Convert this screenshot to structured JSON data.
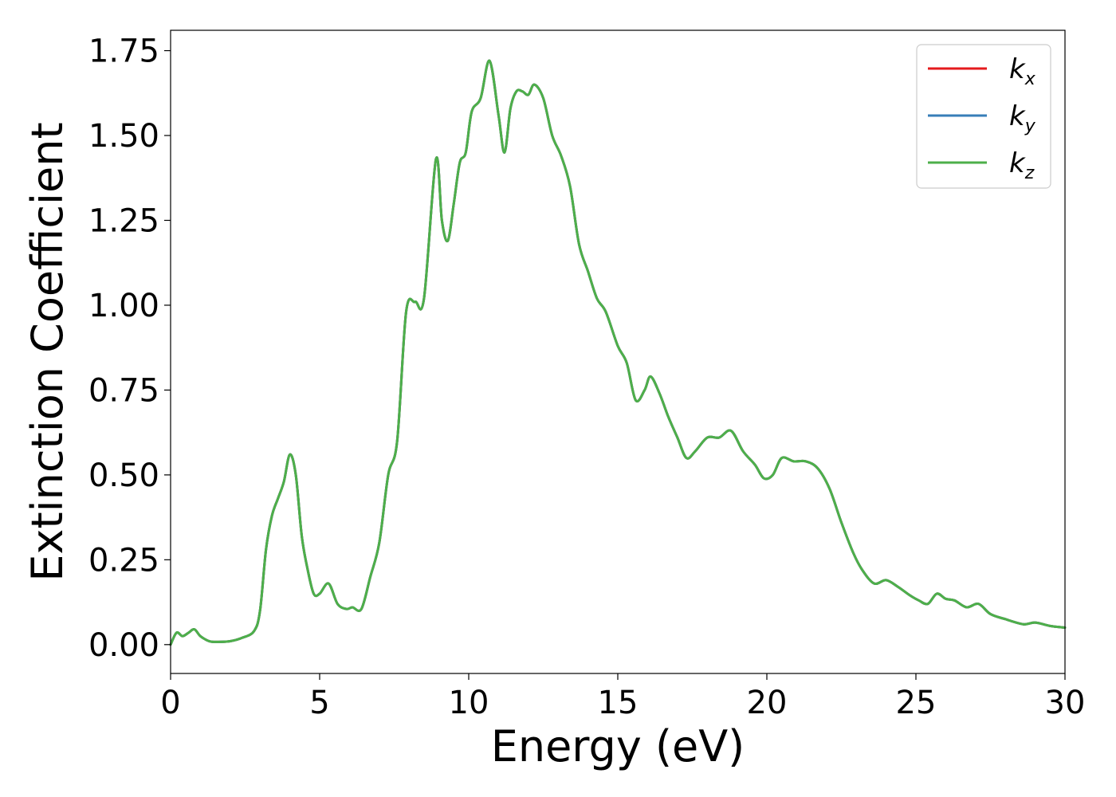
{
  "chart_data": {
    "type": "line",
    "xlabel": "Energy (eV)",
    "ylabel": "Extinction Coefficient",
    "xlim": [
      0,
      30
    ],
    "ylim": [
      -0.085,
      1.81
    ],
    "x_ticks": [
      0,
      5,
      10,
      15,
      20,
      25,
      30
    ],
    "x_tick_labels": [
      "0",
      "5",
      "10",
      "15",
      "20",
      "25",
      "30"
    ],
    "y_ticks": [
      0.0,
      0.25,
      0.5,
      0.75,
      1.0,
      1.25,
      1.5,
      1.75
    ],
    "y_tick_labels": [
      "0.00",
      "0.25",
      "0.50",
      "0.75",
      "1.00",
      "1.25",
      "1.50",
      "1.75"
    ],
    "grid": false,
    "legend_position": "top-right",
    "x": [
      0.0,
      0.2,
      0.4,
      0.6,
      0.8,
      1.0,
      1.3,
      1.6,
      2.0,
      2.4,
      2.8,
      3.0,
      3.2,
      3.4,
      3.6,
      3.8,
      4.0,
      4.2,
      4.4,
      4.6,
      4.8,
      5.0,
      5.3,
      5.6,
      5.9,
      6.1,
      6.4,
      6.7,
      7.0,
      7.3,
      7.6,
      7.9,
      8.2,
      8.5,
      8.9,
      9.1,
      9.3,
      9.5,
      9.7,
      9.9,
      10.1,
      10.4,
      10.7,
      11.0,
      11.2,
      11.4,
      11.6,
      11.8,
      12.0,
      12.2,
      12.5,
      12.8,
      13.1,
      13.4,
      13.7,
      14.0,
      14.3,
      14.6,
      15.0,
      15.3,
      15.6,
      15.9,
      16.1,
      16.4,
      16.7,
      17.0,
      17.3,
      17.6,
      18.0,
      18.4,
      18.8,
      19.2,
      19.6,
      19.9,
      20.2,
      20.5,
      20.9,
      21.3,
      21.7,
      22.1,
      22.5,
      22.9,
      23.2,
      23.6,
      24.0,
      24.4,
      24.8,
      25.1,
      25.4,
      25.7,
      26.0,
      26.3,
      26.7,
      27.1,
      27.5,
      28.0,
      28.6,
      29.0,
      29.5,
      30.0
    ],
    "series": [
      {
        "name": "k_x",
        "color": "#e41a1c",
        "values": [
          0.0,
          0.035,
          0.025,
          0.035,
          0.045,
          0.025,
          0.01,
          0.008,
          0.01,
          0.02,
          0.04,
          0.1,
          0.28,
          0.38,
          0.43,
          0.48,
          0.56,
          0.5,
          0.32,
          0.22,
          0.15,
          0.15,
          0.18,
          0.12,
          0.105,
          0.11,
          0.105,
          0.2,
          0.3,
          0.5,
          0.6,
          0.98,
          1.01,
          1.02,
          1.43,
          1.25,
          1.19,
          1.3,
          1.42,
          1.45,
          1.57,
          1.61,
          1.72,
          1.56,
          1.45,
          1.58,
          1.63,
          1.63,
          1.62,
          1.65,
          1.61,
          1.5,
          1.44,
          1.35,
          1.18,
          1.1,
          1.02,
          0.98,
          0.88,
          0.83,
          0.72,
          0.75,
          0.79,
          0.74,
          0.67,
          0.61,
          0.55,
          0.57,
          0.61,
          0.61,
          0.63,
          0.57,
          0.53,
          0.49,
          0.5,
          0.55,
          0.54,
          0.54,
          0.52,
          0.46,
          0.36,
          0.27,
          0.22,
          0.18,
          0.19,
          0.17,
          0.145,
          0.13,
          0.12,
          0.15,
          0.135,
          0.13,
          0.11,
          0.12,
          0.09,
          0.075,
          0.06,
          0.065,
          0.055,
          0.05
        ]
      },
      {
        "name": "k_y",
        "color": "#377eb8",
        "values": [
          0.0,
          0.035,
          0.025,
          0.035,
          0.045,
          0.025,
          0.01,
          0.008,
          0.01,
          0.02,
          0.04,
          0.1,
          0.28,
          0.38,
          0.43,
          0.48,
          0.56,
          0.5,
          0.32,
          0.22,
          0.15,
          0.15,
          0.18,
          0.12,
          0.105,
          0.11,
          0.105,
          0.2,
          0.3,
          0.5,
          0.6,
          0.98,
          1.01,
          1.02,
          1.43,
          1.25,
          1.19,
          1.3,
          1.42,
          1.45,
          1.57,
          1.61,
          1.72,
          1.56,
          1.45,
          1.58,
          1.63,
          1.63,
          1.62,
          1.65,
          1.61,
          1.5,
          1.44,
          1.35,
          1.18,
          1.1,
          1.02,
          0.98,
          0.88,
          0.83,
          0.72,
          0.75,
          0.79,
          0.74,
          0.67,
          0.61,
          0.55,
          0.57,
          0.61,
          0.61,
          0.63,
          0.57,
          0.53,
          0.49,
          0.5,
          0.55,
          0.54,
          0.54,
          0.52,
          0.46,
          0.36,
          0.27,
          0.22,
          0.18,
          0.19,
          0.17,
          0.145,
          0.13,
          0.12,
          0.15,
          0.135,
          0.13,
          0.11,
          0.12,
          0.09,
          0.075,
          0.06,
          0.065,
          0.055,
          0.05
        ]
      },
      {
        "name": "k_z",
        "color": "#4daf4a",
        "values": [
          0.0,
          0.035,
          0.025,
          0.035,
          0.045,
          0.025,
          0.01,
          0.008,
          0.01,
          0.02,
          0.04,
          0.1,
          0.28,
          0.38,
          0.43,
          0.48,
          0.56,
          0.5,
          0.32,
          0.22,
          0.15,
          0.15,
          0.18,
          0.12,
          0.105,
          0.11,
          0.105,
          0.2,
          0.3,
          0.5,
          0.6,
          0.98,
          1.01,
          1.02,
          1.43,
          1.25,
          1.19,
          1.3,
          1.42,
          1.45,
          1.57,
          1.61,
          1.72,
          1.56,
          1.45,
          1.58,
          1.63,
          1.63,
          1.62,
          1.65,
          1.61,
          1.5,
          1.44,
          1.35,
          1.18,
          1.1,
          1.02,
          0.98,
          0.88,
          0.83,
          0.72,
          0.75,
          0.79,
          0.74,
          0.67,
          0.61,
          0.55,
          0.57,
          0.61,
          0.61,
          0.63,
          0.57,
          0.53,
          0.49,
          0.5,
          0.55,
          0.54,
          0.54,
          0.52,
          0.46,
          0.36,
          0.27,
          0.22,
          0.18,
          0.19,
          0.17,
          0.145,
          0.13,
          0.12,
          0.15,
          0.135,
          0.13,
          0.11,
          0.12,
          0.09,
          0.075,
          0.06,
          0.065,
          0.055,
          0.05
        ]
      }
    ],
    "legend": [
      {
        "base": "k",
        "sub": "x",
        "color": "#e41a1c"
      },
      {
        "base": "k",
        "sub": "y",
        "color": "#377eb8"
      },
      {
        "base": "k",
        "sub": "z",
        "color": "#4daf4a"
      }
    ]
  }
}
